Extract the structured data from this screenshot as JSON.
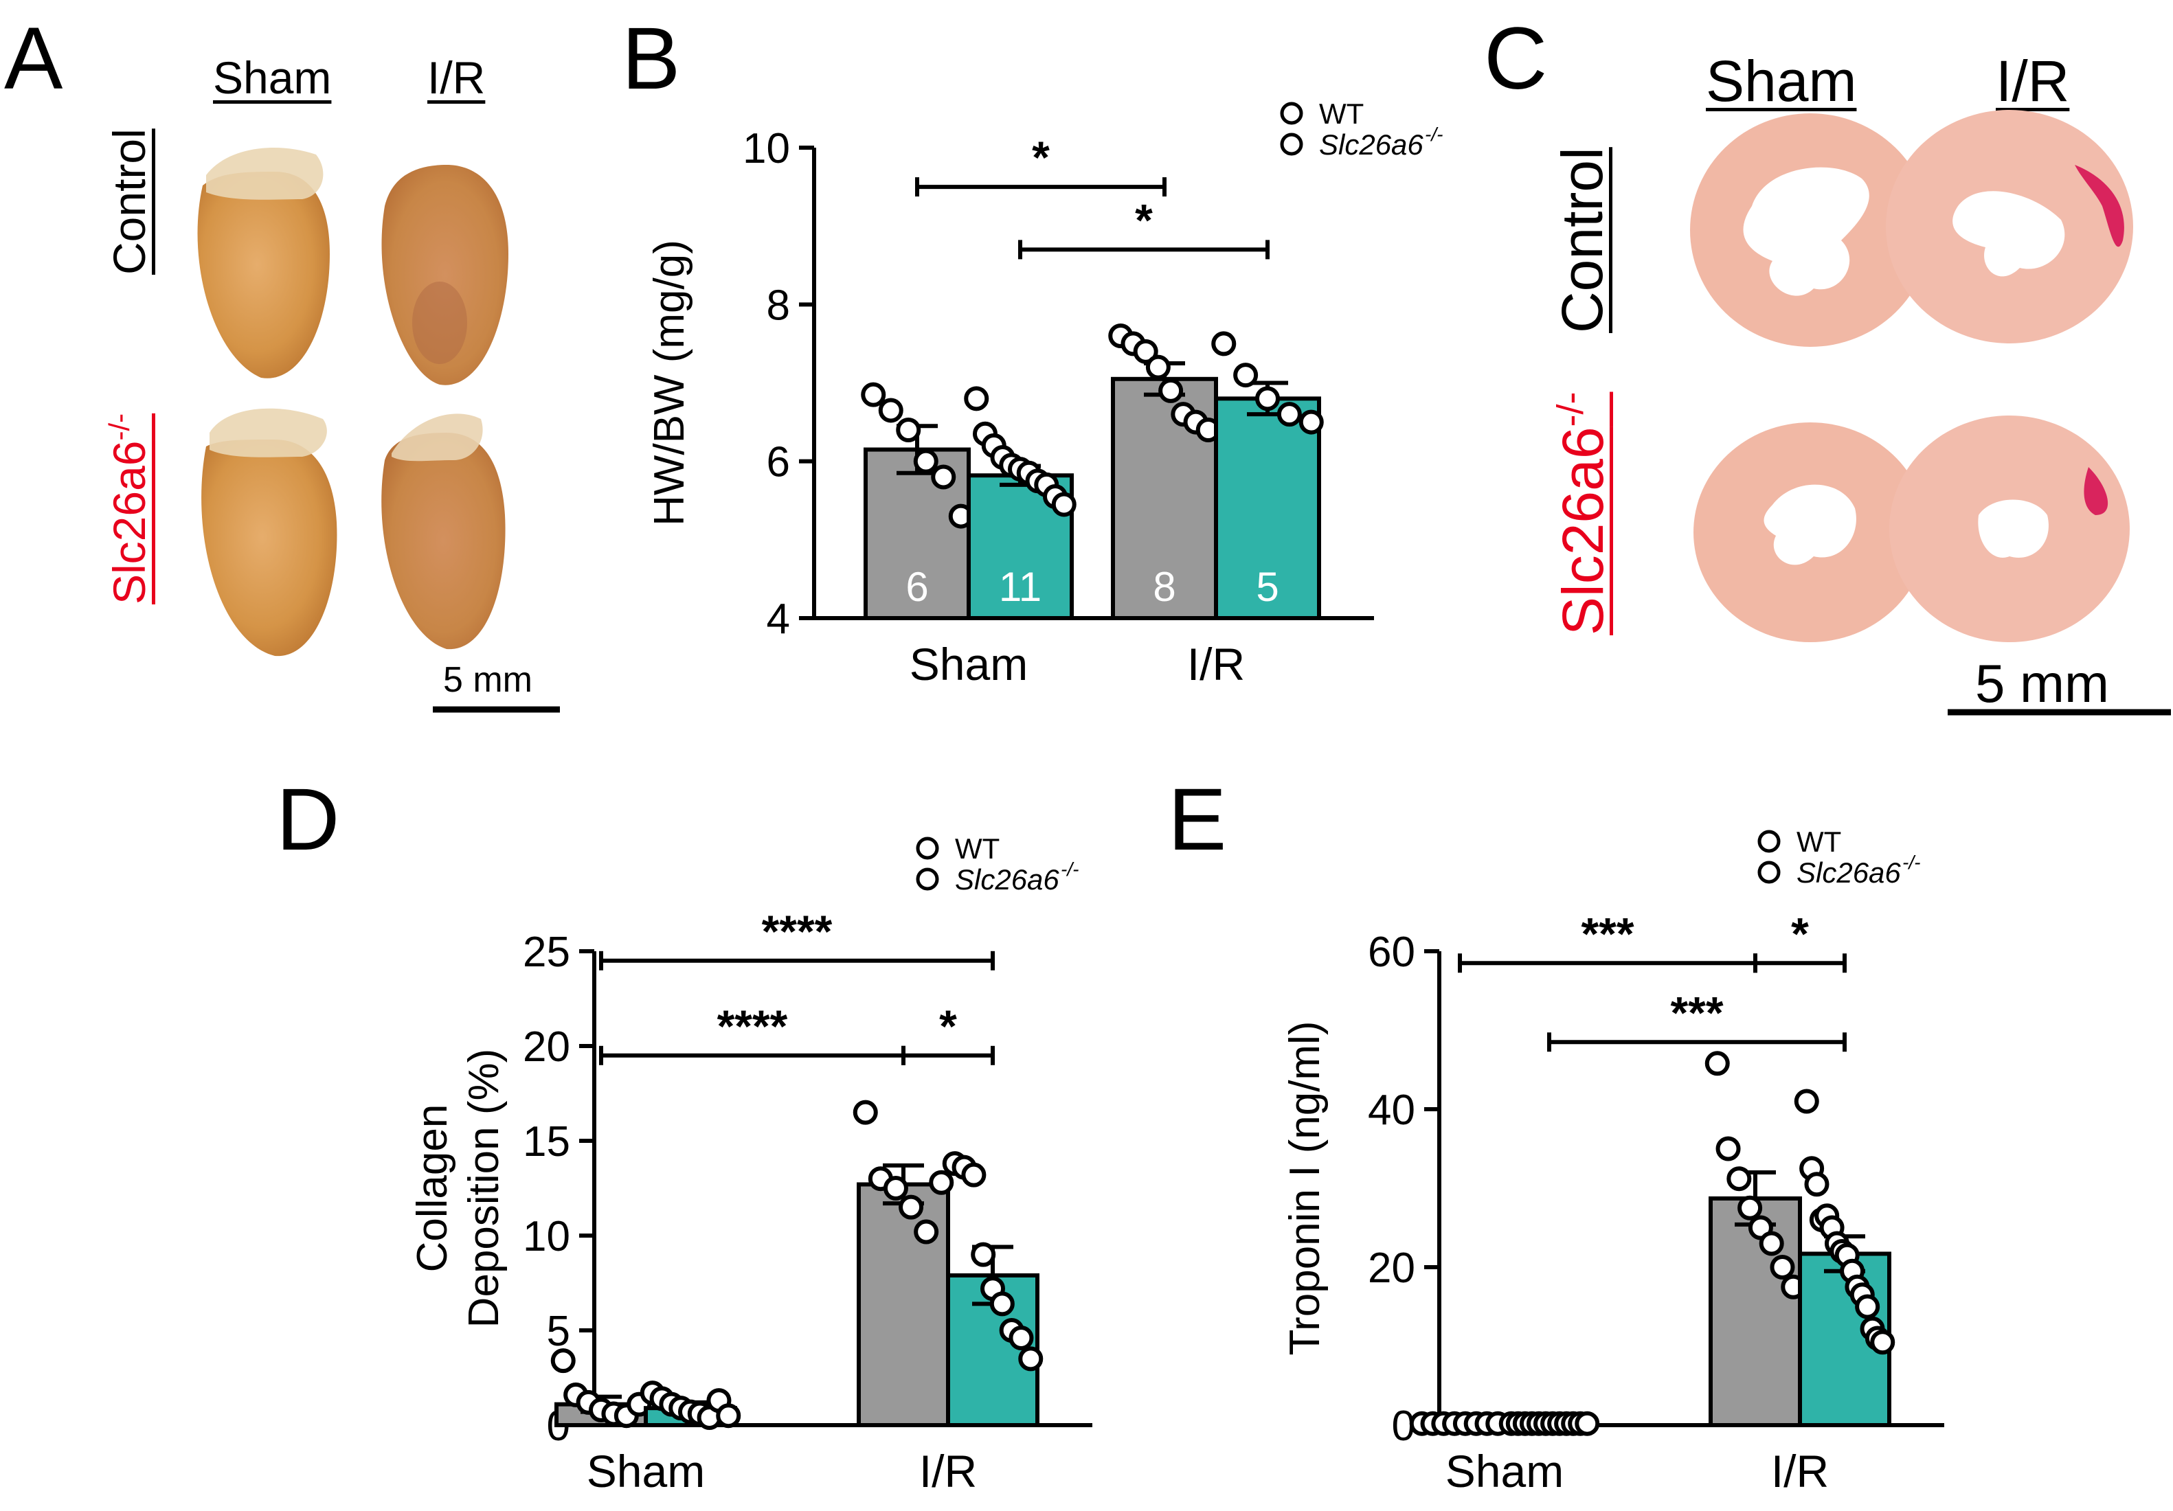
{
  "panels": {
    "a": {
      "letter": "A",
      "col_sham": "Sham",
      "col_ir": "I/R",
      "row_control": "Control",
      "row_ko": "Slc26a6",
      "row_ko_sup": "-/-",
      "scale": "5 mm"
    },
    "c": {
      "letter": "C",
      "col_sham": "Sham",
      "col_ir": "I/R",
      "row_control": "Control",
      "row_ko": "Slc26a6",
      "row_ko_sup": "-/-",
      "scale": "5 mm"
    },
    "b_letter": "B",
    "d_letter": "D",
    "e_letter": "E"
  },
  "colors": {
    "wt": "#999999",
    "ko": "#2fb3a8",
    "ko_label": "#e8001c"
  },
  "chart_data": [
    {
      "id": "B",
      "type": "bar",
      "ylabel": "HW/BW (mg/g)",
      "ylim": [
        4,
        10
      ],
      "yticks": [
        4,
        6,
        8,
        10
      ],
      "categories": [
        "Sham",
        "I/R"
      ],
      "legend": [
        "WT",
        "Slc26a6"
      ],
      "legend_sup": "-/-",
      "series": [
        {
          "name": "WT",
          "values": [
            6.15,
            7.05
          ],
          "sem": [
            0.3,
            0.2
          ],
          "n": [
            "6",
            "8"
          ],
          "points": [
            [
              6.85,
              6.65,
              6.4,
              6.0,
              5.8,
              5.3
            ],
            [
              7.6,
              7.5,
              7.4,
              7.2,
              6.9,
              6.6,
              6.5,
              6.4
            ]
          ]
        },
        {
          "name": "Slc26a6-/-",
          "values": [
            5.82,
            6.8
          ],
          "sem": [
            0.12,
            0.2
          ],
          "n": [
            "11",
            "5"
          ],
          "points": [
            [
              6.8,
              6.35,
              6.2,
              6.05,
              5.95,
              5.9,
              5.85,
              5.75,
              5.7,
              5.55,
              5.45
            ],
            [
              7.5,
              7.1,
              6.8,
              6.6,
              6.5
            ]
          ]
        }
      ],
      "annotations": [
        {
          "text": "*",
          "from": [
            0,
            0
          ],
          "to": [
            1,
            0
          ],
          "y": 9.5
        },
        {
          "text": "*",
          "from": [
            0,
            1
          ],
          "to": [
            1,
            1
          ],
          "y": 8.7
        }
      ],
      "legend_position": "top-right"
    },
    {
      "id": "D",
      "type": "bar",
      "ylabel_lines": [
        "Collagen",
        "Deposition (%)"
      ],
      "ylim": [
        0,
        25
      ],
      "yticks": [
        0,
        5,
        10,
        15,
        20,
        25
      ],
      "categories": [
        "Sham",
        "I/R"
      ],
      "legend": [
        "WT",
        "Slc26a6"
      ],
      "legend_sup": "-/-",
      "series": [
        {
          "name": "WT",
          "values": [
            1.1,
            12.7
          ],
          "sem": [
            0.4,
            1.0
          ],
          "points": [
            [
              3.4,
              1.6,
              1.2,
              0.8,
              0.6,
              0.5,
              1.1
            ],
            [
              16.5,
              13.0,
              12.5,
              11.5,
              10.2,
              12.8
            ]
          ]
        },
        {
          "name": "Slc26a6-/-",
          "values": [
            0.9,
            7.9
          ],
          "sem": [
            0.3,
            1.5
          ],
          "points": [
            [
              1.7,
              1.4,
              1.1,
              0.9,
              0.7,
              0.6,
              0.4,
              1.3,
              0.5
            ],
            [
              13.8,
              13.6,
              13.2,
              9.0,
              7.2,
              6.4,
              5.0,
              4.6,
              3.5
            ]
          ]
        }
      ],
      "annotations": [
        {
          "text": "****",
          "from": [
            0,
            0
          ],
          "to": [
            1,
            1
          ],
          "y": 24.5
        },
        {
          "text": "****",
          "from": [
            0,
            0
          ],
          "to": [
            1,
            0
          ],
          "y": 19.5
        },
        {
          "text": "*",
          "from": [
            1,
            0
          ],
          "to": [
            1,
            1
          ],
          "y": 19.5
        }
      ],
      "legend_position": "top-right"
    },
    {
      "id": "E",
      "type": "bar",
      "ylabel": "Troponin I (ng/ml)",
      "ylim": [
        0,
        60
      ],
      "yticks": [
        0,
        20,
        40,
        60
      ],
      "categories": [
        "Sham",
        "I/R"
      ],
      "legend": [
        "WT",
        "Slc26a6"
      ],
      "legend_sup": "-/-",
      "series": [
        {
          "name": "WT",
          "values": [
            0.2,
            28.7
          ],
          "sem": [
            0.05,
            3.3
          ],
          "points": [
            [
              0.2,
              0.2,
              0.2,
              0.2,
              0.2,
              0.2,
              0.2,
              0.2
            ],
            [
              45.8,
              35.0,
              31.2,
              27.5,
              25.0,
              23.0,
              20.0,
              17.5
            ]
          ]
        },
        {
          "name": "Slc26a6-/-",
          "values": [
            0.2,
            21.7
          ],
          "sem": [
            0.05,
            2.2
          ],
          "points": [
            [
              0.2,
              0.2,
              0.2,
              0.2,
              0.2,
              0.2,
              0.2,
              0.2,
              0.2,
              0.2,
              0.2,
              0.2
            ],
            [
              41.0,
              32.5,
              30.5,
              26.0,
              26.5,
              25.0,
              23.0,
              22.0,
              21.5,
              19.5,
              17.5,
              16.5,
              15.0,
              12.2,
              11.0,
              10.5
            ]
          ]
        }
      ],
      "annotations": [
        {
          "text": "***",
          "from": [
            0,
            0
          ],
          "to": [
            1,
            0
          ],
          "y": 58.5
        },
        {
          "text": "*",
          "from": [
            1,
            0
          ],
          "to": [
            1,
            1
          ],
          "y": 58.5
        },
        {
          "text": "***",
          "from": [
            0,
            1
          ],
          "to": [
            1,
            1
          ],
          "y": 48.5
        }
      ],
      "legend_position": "top-right"
    }
  ]
}
